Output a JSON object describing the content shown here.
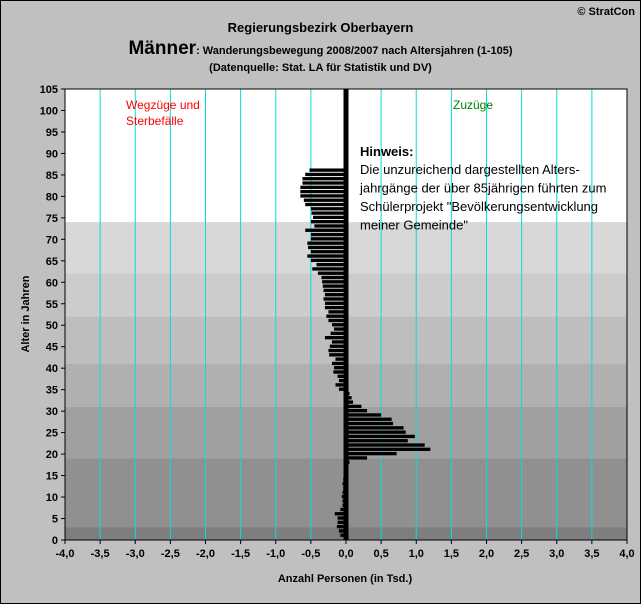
{
  "header": {
    "copyright": "© StratCon",
    "region": "Regierungsbezirk Oberbayern",
    "title_main": "Männer",
    "title_rest": ": Wanderungsbewegung 2008/2007 nach Altersjahren (1-105)",
    "source": "(Datenquelle: Stat. LA für Statistik und DV)"
  },
  "chart_data": {
    "type": "bar",
    "orientation": "horizontal",
    "xlabel": "Anzahl Personen (in Tsd.)",
    "ylabel": "Alter in Jahren",
    "xlim": [
      -4.0,
      4.0
    ],
    "ylim": [
      0,
      105
    ],
    "x_tick_labels": [
      "-4,0",
      "-3,5",
      "-3,0",
      "-2,5",
      "-2,0",
      "-1,5",
      "-1,0",
      "-0,5",
      "0,0",
      "0,5",
      "1,0",
      "1,5",
      "2,0",
      "2,5",
      "3,0",
      "3,5",
      "4,0"
    ],
    "y_tick_labels": [
      "0",
      "5",
      "10",
      "15",
      "20",
      "25",
      "30",
      "35",
      "40",
      "45",
      "50",
      "55",
      "60",
      "65",
      "70",
      "75",
      "80",
      "85",
      "90",
      "95",
      "100",
      "105"
    ],
    "grid": true,
    "background_bands": [
      {
        "from": 0,
        "to": 3,
        "color": "#7e7e7e"
      },
      {
        "from": 3,
        "to": 19,
        "color": "#909090"
      },
      {
        "from": 19,
        "to": 31,
        "color": "#a0a0a0"
      },
      {
        "from": 31,
        "to": 41,
        "color": "#b0b0b0"
      },
      {
        "from": 41,
        "to": 52,
        "color": "#bebebe"
      },
      {
        "from": 52,
        "to": 62,
        "color": "#cccccc"
      },
      {
        "from": 62,
        "to": 74,
        "color": "#d8d8d8"
      },
      {
        "from": 74,
        "to": 105,
        "color": "#ffffff"
      }
    ],
    "left_label": "Wegzüge und\nSterbefälle",
    "left_label_color": "#ff0000",
    "right_label": "Zuzüge",
    "right_label_color": "#008000",
    "annotation_title": "Hinweis:",
    "annotation_text": "Die unzureichend dargestellten Alters-\njahrgänge der über 85jährigen führten zum\nSchülerprojekt \"Bevölkerungsentwicklung\nmeiner Gemeinde\"",
    "bar_color": "#000000",
    "grid_color": "#00e0e0",
    "series": [
      {
        "ages": [
          1,
          2,
          3,
          4,
          5,
          6,
          7,
          8,
          9,
          10,
          11,
          12,
          13,
          14,
          15,
          16,
          17,
          18,
          19,
          20,
          21,
          22,
          23,
          24,
          25,
          26,
          27,
          28,
          29,
          30,
          31,
          32,
          33,
          34,
          35,
          36,
          37,
          38,
          39,
          40,
          41,
          42,
          43,
          44,
          45,
          46,
          47,
          48,
          49,
          50,
          51,
          52,
          53,
          54,
          55,
          56,
          57,
          58,
          59,
          60,
          61,
          62,
          63,
          64,
          65,
          66,
          67,
          68,
          69,
          70,
          71,
          72,
          73,
          74,
          75,
          76,
          77,
          78,
          79,
          80,
          81,
          82,
          83,
          84,
          85,
          86
        ],
        "values": [
          -0.08,
          -0.1,
          -0.13,
          -0.12,
          -0.12,
          -0.16,
          -0.08,
          -0.05,
          -0.05,
          -0.06,
          -0.05,
          -0.04,
          -0.05,
          -0.04,
          -0.03,
          -0.03,
          -0.02,
          0.05,
          0.3,
          0.72,
          1.2,
          1.12,
          0.88,
          0.98,
          0.85,
          0.82,
          0.67,
          0.65,
          0.5,
          0.3,
          0.22,
          0.1,
          0.08,
          0.05,
          -0.1,
          -0.15,
          -0.1,
          -0.12,
          -0.18,
          -0.17,
          -0.2,
          -0.15,
          -0.24,
          -0.25,
          -0.23,
          -0.2,
          -0.3,
          -0.22,
          -0.17,
          -0.2,
          -0.25,
          -0.28,
          -0.25,
          -0.3,
          -0.3,
          -0.32,
          -0.3,
          -0.32,
          -0.33,
          -0.34,
          -0.35,
          -0.4,
          -0.48,
          -0.42,
          -0.5,
          -0.55,
          -0.5,
          -0.54,
          -0.55,
          -0.5,
          -0.5,
          -0.58,
          -0.45,
          -0.5,
          -0.47,
          -0.49,
          -0.5,
          -0.58,
          -0.6,
          -0.65,
          -0.65,
          -0.65,
          -0.62,
          -0.62,
          -0.58,
          -0.52
        ]
      }
    ]
  }
}
